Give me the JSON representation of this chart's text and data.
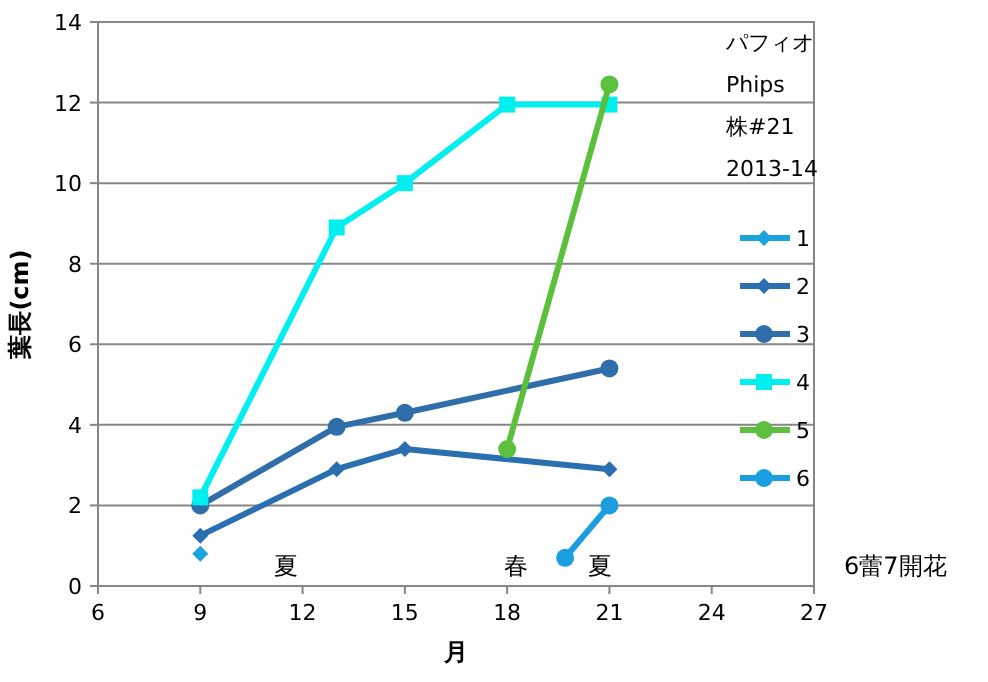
{
  "chart_data": {
    "type": "line",
    "xlabel": "月",
    "ylabel": "葉長(cm)",
    "legend_title": "パフィオ\nPhips\n株#21\n2013-14",
    "xlim": [
      6,
      27
    ],
    "xticks": [
      6,
      9,
      12,
      15,
      18,
      21,
      24,
      27
    ],
    "ylim": [
      0,
      14
    ],
    "yticks": [
      0,
      2,
      4,
      6,
      8,
      10,
      12,
      14
    ],
    "grid": "y",
    "legend": "right",
    "series": [
      {
        "name": "1",
        "color": "#1aa3dc",
        "marker": "diamond",
        "x": [
          9
        ],
        "values": [
          0.8
        ]
      },
      {
        "name": "2",
        "color": "#2a6fb0",
        "marker": "diamond",
        "x": [
          9,
          13,
          15,
          21
        ],
        "values": [
          1.25,
          2.9,
          3.4,
          2.9
        ]
      },
      {
        "name": "3",
        "color": "#2f6ea8",
        "marker": "circle",
        "x": [
          9,
          13,
          15,
          21
        ],
        "values": [
          2.0,
          3.95,
          4.3,
          5.4
        ]
      },
      {
        "name": "4",
        "color": "#00f0f0",
        "marker": "square",
        "x": [
          9,
          13,
          15,
          18,
          21
        ],
        "values": [
          2.2,
          8.9,
          10,
          11.95,
          11.95
        ]
      },
      {
        "name": "5",
        "color": "#5cc03c",
        "marker": "circle",
        "x": [
          18,
          21
        ],
        "values": [
          3.4,
          12.45
        ]
      },
      {
        "name": "6",
        "color": "#1a9ee0",
        "marker": "circle",
        "x": [
          19.7,
          21
        ],
        "values": [
          0.7,
          2.0
        ]
      }
    ],
    "annotations": [
      "夏",
      "春",
      "夏",
      "6蕾7開花"
    ]
  }
}
